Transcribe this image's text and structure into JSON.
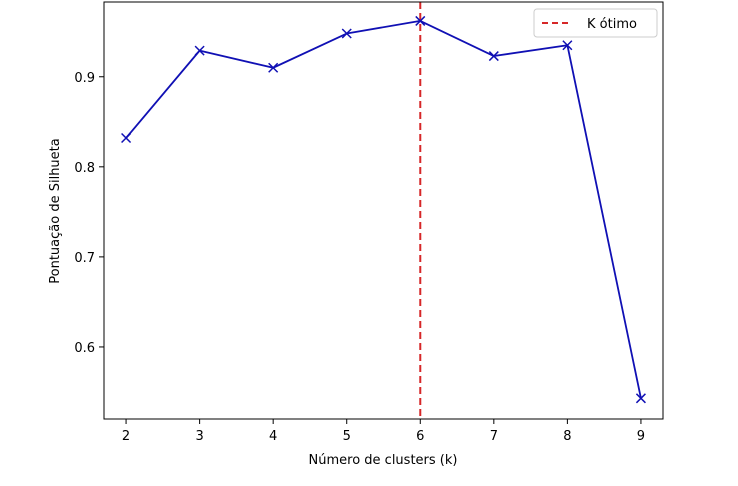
{
  "chart_data": {
    "type": "line",
    "title": "",
    "xlabel": "Número de clusters (k)",
    "ylabel": "Pontuação de Silhueta",
    "xlim": [
      1.7,
      9.3
    ],
    "ylim": [
      0.52,
      0.983
    ],
    "x_ticks": [
      2,
      3,
      4,
      5,
      6,
      7,
      8,
      9
    ],
    "y_ticks": [
      0.6,
      0.7,
      0.8,
      0.9
    ],
    "y_tick_labels": [
      "0.6",
      "0.7",
      "0.8",
      "0.9"
    ],
    "grid": false,
    "series": [
      {
        "color": "#1010b4",
        "marker": "x",
        "x": [
          2,
          3,
          4,
          5,
          6,
          7,
          8,
          9
        ],
        "values": [
          0.832,
          0.929,
          0.91,
          0.948,
          0.962,
          0.923,
          0.935,
          0.543
        ]
      }
    ],
    "reference_lines": [
      {
        "orientation": "vertical",
        "x": 6,
        "style": "dashed",
        "color": "#d62728",
        "label": "K ótimo"
      }
    ],
    "legend": {
      "position": "top-right",
      "entries": [
        "K ótimo"
      ]
    }
  }
}
